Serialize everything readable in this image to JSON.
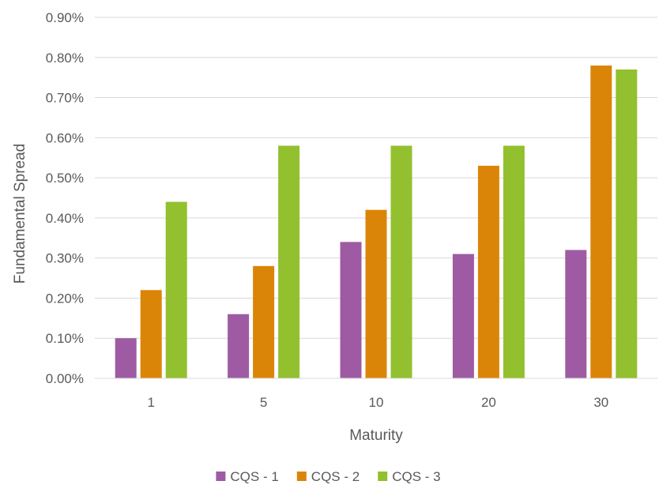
{
  "chart_data": {
    "type": "bar",
    "title": "",
    "xlabel": "Maturity",
    "ylabel": "Fundamental Spread",
    "categories": [
      "1",
      "5",
      "10",
      "20",
      "30"
    ],
    "ylim": [
      0,
      0.9
    ],
    "yticks": [
      0.0,
      0.1,
      0.2,
      0.3,
      0.4,
      0.5,
      0.6,
      0.7,
      0.8,
      0.9
    ],
    "ytick_labels": [
      "0.00%",
      "0.10%",
      "0.20%",
      "0.30%",
      "0.40%",
      "0.50%",
      "0.60%",
      "0.70%",
      "0.80%",
      "0.90%"
    ],
    "grid": true,
    "legend_position": "bottom",
    "series": [
      {
        "name": "CQS - 1",
        "color": "#9e5ba3",
        "values": [
          0.1,
          0.16,
          0.34,
          0.31,
          0.32
        ]
      },
      {
        "name": "CQS - 2",
        "color": "#db8508",
        "values": [
          0.22,
          0.28,
          0.42,
          0.53,
          0.78
        ]
      },
      {
        "name": "CQS - 3",
        "color": "#93c02e",
        "values": [
          0.44,
          0.58,
          0.58,
          0.58,
          0.77
        ]
      }
    ]
  }
}
